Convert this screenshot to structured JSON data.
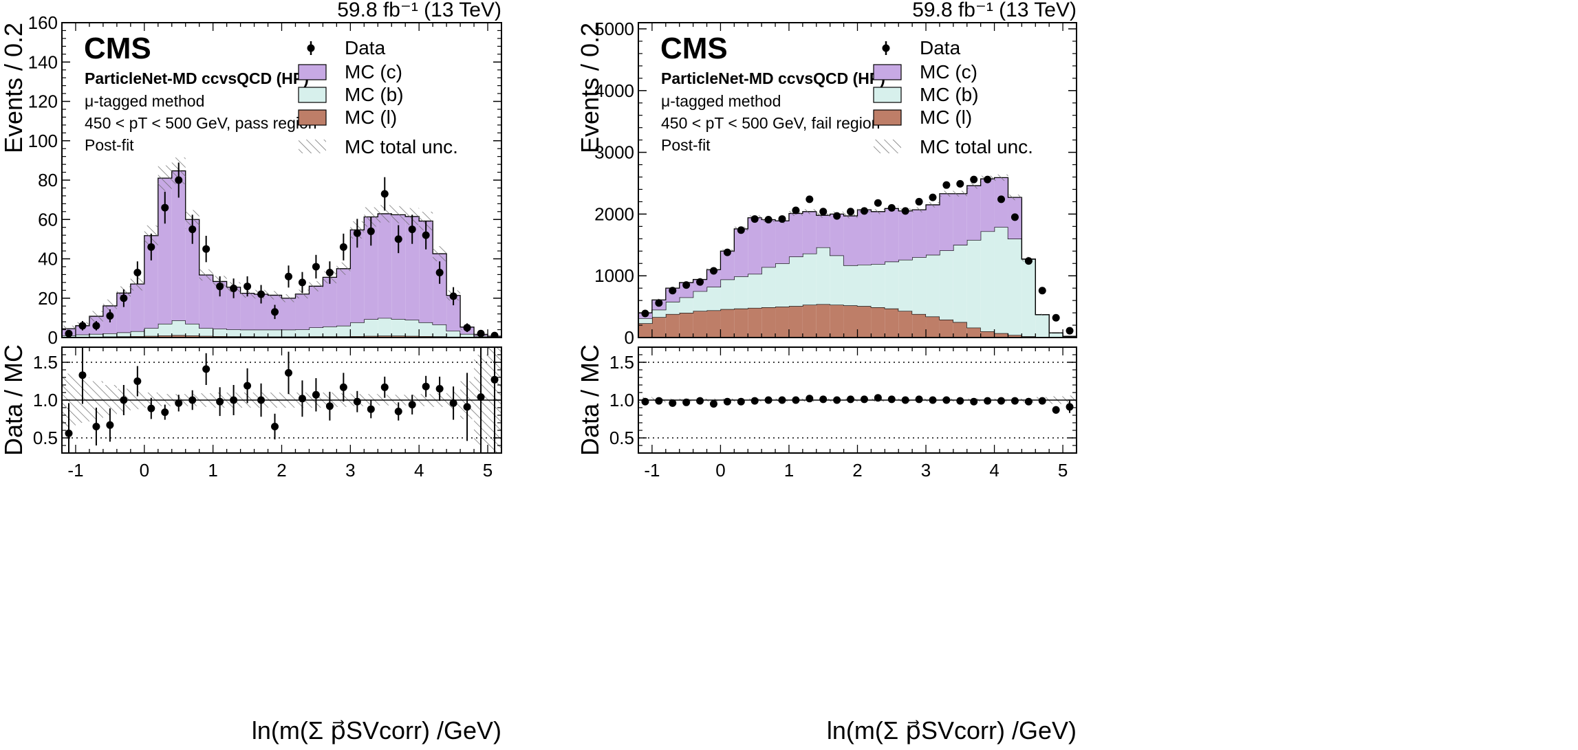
{
  "chart_data": [
    {
      "type": "bar",
      "panel": "pass",
      "lumi_label": "59.8 fb⁻¹ (13 TeV)",
      "experiment": "CMS",
      "tagger": "ParticleNet-MD ccvsQCD (HP)",
      "method": "μ-tagged method",
      "pt_range": "450 < pT < 500 GeV, pass region",
      "fit_state": "Post-fit",
      "ylabel": "Events / 0.2",
      "ratio_ylabel": "Data / MC",
      "xlabel": "ln(m(Σ p⃗SVcorr) /GeV)",
      "xlim": [
        -1.2,
        5.2
      ],
      "ylim": [
        0,
        160
      ],
      "ratio_ylim": [
        0.3,
        1.7
      ],
      "xticks": [
        "-1",
        "0",
        "1",
        "2",
        "3",
        "4",
        "5"
      ],
      "xtick_values": [
        -1,
        0,
        1,
        2,
        3,
        4,
        5
      ],
      "yticks": [
        "0",
        "20",
        "40",
        "60",
        "80",
        "100",
        "120",
        "140",
        "160"
      ],
      "ytick_values": [
        0,
        20,
        40,
        60,
        80,
        100,
        120,
        140,
        160
      ],
      "ratio_yticks": [
        "0.5",
        "1.0",
        "1.5"
      ],
      "ratio_ytick_values": [
        0.5,
        1.0,
        1.5
      ],
      "bin_edges": [
        -1.2,
        -1.0,
        -0.8,
        -0.6,
        -0.4,
        -0.2,
        0.0,
        0.2,
        0.4,
        0.6,
        0.8,
        1.0,
        1.2,
        1.4,
        1.6,
        1.8,
        2.0,
        2.2,
        2.4,
        2.6,
        2.8,
        3.0,
        3.2,
        3.4,
        3.6,
        3.8,
        4.0,
        4.2,
        4.4,
        4.6,
        4.8,
        5.0,
        5.2
      ],
      "legend": {
        "data": "Data",
        "mc_c": "MC (c)",
        "mc_b": "MC (b)",
        "mc_l": "MC (l)",
        "unc": "MC total unc."
      },
      "colors": {
        "mc_c": "#c7a9e4",
        "mc_b": "#d7f0ec",
        "mc_l": "#be7e68"
      },
      "series": [
        {
          "name": "MC (l)",
          "values": [
            0.2,
            0.3,
            0.4,
            0.5,
            0.6,
            0.7,
            0.8,
            1.0,
            1.2,
            1.0,
            0.8,
            0.7,
            0.6,
            0.6,
            0.5,
            0.5,
            0.5,
            0.5,
            0.6,
            0.6,
            0.6,
            0.7,
            0.8,
            0.9,
            0.9,
            0.8,
            0.7,
            0.6,
            0.4,
            0.3,
            0.2,
            0.1
          ]
        },
        {
          "name": "MC (b)",
          "values": [
            0.8,
            1.2,
            1.4,
            1.6,
            2.0,
            2.5,
            4.0,
            6.0,
            7.5,
            6.0,
            4.0,
            3.8,
            3.5,
            3.4,
            3.5,
            3.5,
            3.5,
            3.6,
            4.5,
            5.0,
            5.4,
            7.0,
            8.5,
            9.0,
            8.5,
            8.2,
            7.0,
            6.0,
            3.0,
            1.5,
            0.6,
            0.3
          ]
        },
        {
          "name": "MC (c)",
          "values": [
            3.5,
            4.5,
            9.0,
            14.0,
            20.0,
            24.0,
            47.0,
            74.0,
            76.0,
            53.0,
            27.0,
            24.0,
            21.5,
            18.5,
            18.0,
            17.5,
            16.0,
            18.0,
            21.0,
            25.0,
            29.0,
            47.0,
            52.0,
            53.0,
            53.0,
            52.5,
            51.5,
            36.0,
            18.0,
            3.5,
            0.8,
            0.3
          ]
        }
      ],
      "mc_total": [
        4.5,
        6.0,
        10.8,
        16.1,
        22.6,
        27.2,
        51.8,
        81.0,
        84.7,
        60.0,
        31.8,
        28.5,
        25.6,
        22.5,
        22.0,
        21.5,
        20.0,
        22.1,
        26.1,
        30.6,
        35.0,
        54.7,
        61.3,
        62.9,
        62.4,
        61.5,
        59.2,
        42.6,
        21.4,
        5.3,
        1.6,
        0.7
      ],
      "data_values": [
        2,
        6,
        6,
        11,
        20,
        33,
        46,
        66,
        80,
        55,
        45,
        26,
        25,
        26,
        22,
        13,
        31,
        28,
        36,
        33,
        46,
        53,
        54,
        73,
        50,
        55,
        52,
        33,
        21,
        5,
        2,
        1
      ],
      "data_errors": [
        1.4,
        2.4,
        2.4,
        3.3,
        4.5,
        5.7,
        6.8,
        8.1,
        8.9,
        7.4,
        6.7,
        5.1,
        5.0,
        5.1,
        4.7,
        3.6,
        5.6,
        5.3,
        6.0,
        5.7,
        6.8,
        7.3,
        7.3,
        8.5,
        7.1,
        7.4,
        7.2,
        5.7,
        4.6,
        2.2,
        1.4,
        1.0
      ],
      "ratio_values": [
        0.56,
        1.33,
        0.65,
        0.67,
        1.0,
        1.25,
        0.89,
        0.84,
        0.96,
        1.0,
        1.41,
        0.98,
        1.0,
        1.19,
        1.0,
        0.65,
        1.36,
        1.02,
        1.07,
        0.92,
        1.17,
        0.98,
        0.88,
        1.17,
        0.85,
        0.94,
        1.18,
        1.15,
        0.96,
        0.91,
        1.04,
        1.27
      ],
      "ratio_errors": [
        0.4,
        0.38,
        0.25,
        0.22,
        0.2,
        0.2,
        0.14,
        0.1,
        0.11,
        0.13,
        0.21,
        0.19,
        0.2,
        0.23,
        0.22,
        0.17,
        0.28,
        0.24,
        0.22,
        0.19,
        0.19,
        0.14,
        0.12,
        0.14,
        0.12,
        0.13,
        0.14,
        0.16,
        0.22,
        0.45,
        0.85,
        1.4
      ],
      "unc_rel": [
        0.35,
        0.3,
        0.25,
        0.2,
        0.15,
        0.12,
        0.1,
        0.08,
        0.08,
        0.08,
        0.09,
        0.1,
        0.1,
        0.1,
        0.1,
        0.1,
        0.1,
        0.1,
        0.1,
        0.1,
        0.09,
        0.08,
        0.08,
        0.07,
        0.07,
        0.07,
        0.08,
        0.09,
        0.12,
        0.25,
        0.6,
        0.9
      ]
    },
    {
      "type": "bar",
      "panel": "fail",
      "lumi_label": "59.8 fb⁻¹ (13 TeV)",
      "experiment": "CMS",
      "tagger": "ParticleNet-MD ccvsQCD (HP)",
      "method": "μ-tagged method",
      "pt_range": "450 < pT < 500 GeV, fail region",
      "fit_state": "Post-fit",
      "ylabel": "Events / 0.2",
      "ratio_ylabel": "Data / MC",
      "xlabel": "ln(m(Σ p⃗SVcorr) /GeV)",
      "xlim": [
        -1.2,
        5.2
      ],
      "ylim": [
        0,
        5100
      ],
      "ratio_ylim": [
        0.3,
        1.7
      ],
      "xticks": [
        "-1",
        "0",
        "1",
        "2",
        "3",
        "4",
        "5"
      ],
      "xtick_values": [
        -1,
        0,
        1,
        2,
        3,
        4,
        5
      ],
      "yticks": [
        "0",
        "1000",
        "2000",
        "3000",
        "4000",
        "5000"
      ],
      "ytick_values": [
        0,
        1000,
        2000,
        3000,
        4000,
        5000
      ],
      "ratio_yticks": [
        "0.5",
        "1.0",
        "1.5"
      ],
      "ratio_ytick_values": [
        0.5,
        1.0,
        1.5
      ],
      "bin_edges": [
        -1.2,
        -1.0,
        -0.8,
        -0.6,
        -0.4,
        -0.2,
        0.0,
        0.2,
        0.4,
        0.6,
        0.8,
        1.0,
        1.2,
        1.4,
        1.6,
        1.8,
        2.0,
        2.2,
        2.4,
        2.6,
        2.8,
        3.0,
        3.2,
        3.4,
        3.6,
        3.8,
        4.0,
        4.2,
        4.4,
        4.6,
        4.8,
        5.0,
        5.2
      ],
      "legend": {
        "data": "Data",
        "mc_c": "MC (c)",
        "mc_b": "MC (b)",
        "mc_l": "MC (l)",
        "unc": "MC total unc."
      },
      "colors": {
        "mc_c": "#c7a9e4",
        "mc_b": "#d7f0ec",
        "mc_l": "#be7e68"
      },
      "series": [
        {
          "name": "MC (l)",
          "values": [
            230,
            330,
            380,
            400,
            430,
            440,
            460,
            470,
            480,
            490,
            500,
            510,
            530,
            540,
            530,
            520,
            510,
            490,
            470,
            430,
            380,
            340,
            290,
            250,
            160,
            100,
            70,
            40,
            20,
            10,
            5,
            2
          ]
        },
        {
          "name": "MC (b)",
          "values": [
            80,
            120,
            200,
            250,
            320,
            380,
            480,
            520,
            550,
            650,
            700,
            800,
            830,
            920,
            800,
            650,
            670,
            700,
            760,
            830,
            920,
            1000,
            1120,
            1250,
            1420,
            1620,
            1720,
            1560,
            1250,
            360,
            70,
            18
          ]
        },
        {
          "name": "MC (c)",
          "values": [
            90,
            160,
            220,
            240,
            190,
            280,
            460,
            770,
            910,
            770,
            690,
            700,
            680,
            520,
            670,
            800,
            890,
            850,
            860,
            790,
            770,
            810,
            920,
            830,
            880,
            850,
            800,
            670,
            0,
            0,
            0,
            0
          ]
        }
      ],
      "mc_total": [
        400,
        610,
        800,
        890,
        940,
        1100,
        1400,
        1760,
        1940,
        1910,
        1890,
        2010,
        2040,
        1980,
        2000,
        1970,
        2070,
        2040,
        2090,
        2050,
        2070,
        2150,
        2330,
        2330,
        2460,
        2570,
        2590,
        2270,
        1270,
        370,
        75,
        20
      ],
      "data_values": [
        390,
        560,
        760,
        850,
        900,
        1080,
        1380,
        1740,
        1920,
        1910,
        1920,
        2060,
        2240,
        2040,
        1970,
        2040,
        2050,
        2180,
        2100,
        2050,
        2200,
        2270,
        2470,
        2490,
        2560,
        2560,
        2240,
        1950,
        1240,
        760,
        320,
        110
      ],
      "data_errors": [
        20,
        24,
        28,
        29,
        30,
        33,
        37,
        42,
        44,
        44,
        44,
        45,
        47,
        45,
        44,
        45,
        45,
        47,
        46,
        45,
        47,
        48,
        50,
        50,
        51,
        51,
        47,
        44,
        35,
        28,
        18,
        10
      ],
      "ratio_values": [
        0.98,
        0.99,
        0.96,
        0.97,
        0.99,
        0.95,
        0.98,
        0.98,
        0.99,
        1.0,
        1.0,
        1.0,
        1.02,
        1.01,
        1.0,
        1.01,
        1.01,
        1.03,
        1.01,
        1.0,
        1.01,
        1.0,
        1.0,
        0.99,
        0.98,
        0.99,
        0.99,
        0.99,
        0.98,
        0.99,
        0.87,
        0.91
      ],
      "ratio_errors": [
        0.03,
        0.02,
        0.02,
        0.02,
        0.02,
        0.02,
        0.02,
        0.02,
        0.02,
        0.02,
        0.02,
        0.02,
        0.02,
        0.02,
        0.02,
        0.02,
        0.02,
        0.02,
        0.02,
        0.02,
        0.02,
        0.02,
        0.02,
        0.02,
        0.02,
        0.02,
        0.02,
        0.02,
        0.02,
        0.03,
        0.05,
        0.08
      ],
      "unc_rel": [
        0.04,
        0.03,
        0.02,
        0.02,
        0.02,
        0.02,
        0.02,
        0.02,
        0.02,
        0.02,
        0.02,
        0.02,
        0.02,
        0.02,
        0.02,
        0.02,
        0.02,
        0.02,
        0.02,
        0.02,
        0.02,
        0.02,
        0.02,
        0.02,
        0.02,
        0.02,
        0.02,
        0.02,
        0.03,
        0.04,
        0.05,
        0.06
      ]
    }
  ]
}
